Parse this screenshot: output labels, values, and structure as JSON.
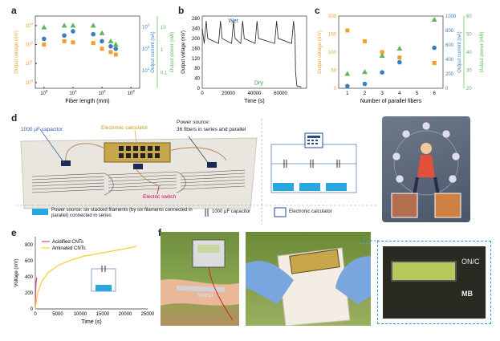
{
  "panel_letters": [
    "a",
    "b",
    "c",
    "d",
    "e",
    "f"
  ],
  "d_labels": {
    "capacitor": "1000 μF capacitor",
    "calculator": "Electronic calculator",
    "power_source": "Power source:\n36 fibers in series and parallel",
    "switch": "Electric switch",
    "legend_source": "Power source: six stacked filaments (by six filaments connected in parallel) connected in series",
    "legend_capacitor": "1000 μF capacitor",
    "legend_calculator": "Electronic calculator"
  },
  "f_labels": {
    "sweat": "Sweat",
    "display_on": "ON/C",
    "display_mb": "MB"
  },
  "colors": {
    "voltage": "#f0a030",
    "current": "#3a7fc1",
    "power": "#5cb85c",
    "acidified": "#e040a0",
    "aminated": "#f5d020",
    "blue_block": "#29a8e0"
  },
  "chart_data": [
    {
      "panel": "a",
      "type": "scatter",
      "xlabel": "Fiber length (mm)",
      "ylabel_left": "Output voltage (mV)",
      "ylabel_right1": "Output current (nA)",
      "ylabel_right2": "Output power (nW)",
      "x_scale": "log",
      "y_scale": "log",
      "x_ticks": [
        "10^0",
        "10^1",
        "10^2",
        "10^3"
      ],
      "y_ticks_left": [
        "10^0",
        "10^1",
        "10^2",
        "10^3"
      ],
      "y_ticks_right1": [
        "10^1",
        "10^2",
        "10^3"
      ],
      "y_ticks_right2": [
        "0.1",
        "1",
        "10"
      ],
      "series": [
        {
          "name": "Output voltage",
          "marker": "square",
          "x": [
            1,
            5,
            10,
            50,
            100,
            200,
            300
          ],
          "y": [
            100,
            150,
            130,
            120,
            60,
            40,
            30
          ]
        },
        {
          "name": "Output current",
          "marker": "circle",
          "x": [
            1,
            5,
            10,
            50,
            100,
            200,
            300
          ],
          "y": [
            200,
            300,
            500,
            350,
            150,
            80,
            60
          ]
        },
        {
          "name": "Output power",
          "marker": "triangle",
          "x": [
            1,
            5,
            10,
            50,
            100,
            200,
            300
          ],
          "y": [
            800,
            1000,
            1000,
            1000,
            400,
            150,
            100
          ]
        }
      ]
    },
    {
      "panel": "b",
      "type": "line",
      "xlabel": "Time (s)",
      "ylabel": "Output voltage (mV)",
      "x_ticks": [
        "0",
        "20000",
        "40000",
        "60000"
      ],
      "y_ticks": [
        "0",
        "40",
        "80",
        "120",
        "160",
        "200",
        "240",
        "280"
      ],
      "ylim": [
        0,
        290
      ],
      "annotations": [
        "Wet",
        "Dry"
      ]
    },
    {
      "panel": "c",
      "type": "scatter",
      "xlabel": "Number of parallel fibers",
      "ylabel_left": "Output voltage (mV)",
      "ylabel_right1": "Output current (nA)",
      "ylabel_right2": "Output power (nW)",
      "categories": [
        "1",
        "2",
        "3",
        "4",
        "5",
        "6"
      ],
      "y_ticks_left": [
        "0",
        "50",
        "100",
        "150",
        "200"
      ],
      "y_ticks_right1": [
        "0",
        "200",
        "400",
        "600",
        "800",
        "1000"
      ],
      "y_ticks_right2": [
        "20",
        "30",
        "40",
        "50",
        "60"
      ],
      "series": [
        {
          "name": "Output voltage",
          "marker": "square",
          "x": [
            1,
            2,
            3,
            4,
            6
          ],
          "y": [
            160,
            130,
            100,
            85,
            70
          ]
        },
        {
          "name": "Output current",
          "marker": "circle",
          "x": [
            1,
            2,
            3,
            4,
            6
          ],
          "y": [
            30,
            60,
            220,
            360,
            560
          ]
        },
        {
          "name": "Output power",
          "marker": "triangle",
          "x": [
            1,
            2,
            3,
            4,
            6
          ],
          "y": [
            28,
            29,
            38,
            42,
            58
          ]
        }
      ]
    },
    {
      "panel": "e",
      "type": "line",
      "xlabel": "Time (s)",
      "ylabel": "Voltage (mV)",
      "x_ticks": [
        "0",
        "5000",
        "10000",
        "15000",
        "20000",
        "25000"
      ],
      "y_ticks": [
        "0",
        "200",
        "400",
        "600",
        "800"
      ],
      "xlim": [
        0,
        25000
      ],
      "ylim": [
        0,
        900
      ],
      "series": [
        {
          "name": "Acidified CNTs",
          "x": [
            0,
            50,
            120,
            200,
            300,
            400
          ],
          "y": [
            0,
            150,
            280,
            340,
            380,
            390
          ]
        },
        {
          "name": "Aminated CNTs",
          "x": [
            0,
            500,
            1500,
            3000,
            5000,
            8000,
            11000,
            15000,
            19000,
            22500
          ],
          "y": [
            0,
            200,
            350,
            460,
            540,
            610,
            660,
            700,
            740,
            780
          ]
        }
      ]
    }
  ]
}
